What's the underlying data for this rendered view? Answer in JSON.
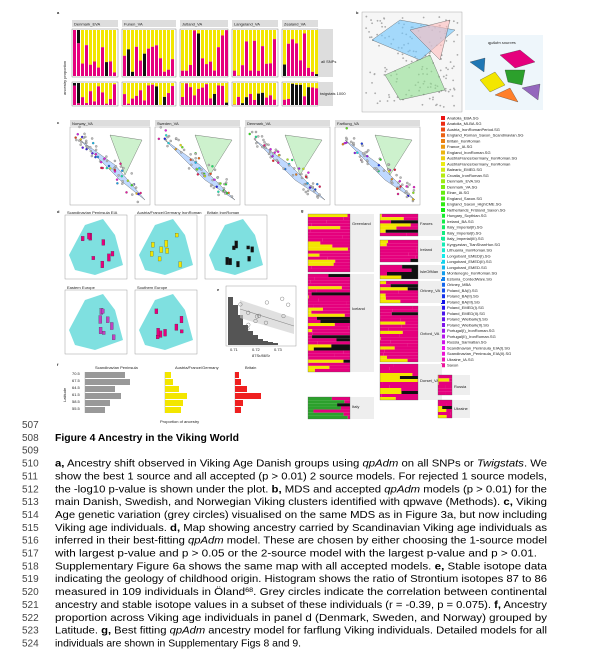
{
  "figure": {
    "panel_letters": [
      "a",
      "b",
      "c",
      "d",
      "e",
      "f",
      "g"
    ],
    "a": {
      "titles": [
        "Denmark_EVA",
        "Funen_VA",
        "Jutland_VA",
        "Langeland_VA",
        "Zealand_VA"
      ],
      "rows": [
        "all SNPs",
        "twigstats 1000"
      ],
      "ylabel": "ancestry proportion"
    },
    "b": {
      "legend_title": "qpAdm sources"
    },
    "c": {
      "titles": [
        "Norway_VA",
        "Sweden_VA",
        "Denmark_VA",
        "Farflung_VA"
      ],
      "legend": [
        "Anatolia_EBA.SG",
        "Anatolia_MLBA.SG",
        "Austria_IronRomanPeriod.SG",
        "England_Roman_Saxon_Scandinavian.SG",
        "Britain_IronRoman",
        "France_IA.SG",
        "England_IronRoman.SG",
        "AustriaFranceGermany_IronRoman.SG",
        "AustriaFranceGermany_IronRoman",
        "Balearic_EMED.SG",
        "Croatia_IronRoman.SG",
        "Denmark_EVA.SG",
        "Denmark_VA.SG",
        "Eiran_IA.SG",
        "England_Saxon.SG",
        "England_Saxon_HighCME.SG",
        "Netherlands_Frisland_Saxon.SG",
        "Hungary_Scythian.SG",
        "Ireland_BA.SG",
        "Italy_Imperial(II).SG",
        "Italy_Imperial(I).SG",
        "Italy_Imperial(III).SG",
        "Kyrgyzstan_TianShanHun.SG",
        "Lithuania_IronRoman.SG",
        "Longobard_EMED(I).SG",
        "Longobard_EMED(II).SG",
        "Longobard_EMED.SG",
        "Montenegro_IronRoman.SG",
        "Estonia_CordedWare.SG",
        "Orkney_MBA",
        "Poland_BA(I).SG",
        "Poland_BA(II).SG",
        "Poland_BA(III).SG",
        "Poland_EMED(I).SG",
        "Poland_EMED(II).SG",
        "Poland_Wielbark(I).SG",
        "Poland_Wielbark(II).SG",
        "Portugal(I)_IronRoman.SG",
        "Portugal(II)_IronRoman.SG",
        "Russia_Sarmatian.SG",
        "Scandinavian_Peninsula_EIA(I).SG",
        "Scandinavian_Peninsula_EIA(II).SG",
        "Ukraine_IA.SG",
        "Saxon"
      ]
    },
    "d": {
      "titles": [
        "Scandinavian Peninsula EIA",
        "Austria/France/Germany IronRoman",
        "Britain IronRoman",
        "Eastern Europe",
        "Southern Europe"
      ]
    },
    "e": {
      "xlabel": "87Sr/86Sr",
      "xticks": [
        "0.71",
        "0.72",
        "0.73"
      ]
    },
    "f": {
      "titles": [
        "Scandinavian Peninsula",
        "Austria/France/Germany",
        "Britain"
      ],
      "yticks": [
        70.5,
        67.5,
        64.5,
        61.5,
        58.5,
        55.5
      ],
      "ylabel": "Latitude",
      "xlabel": "Proportion of ancestry"
    },
    "g": {
      "labels": [
        "Greenland",
        "Iceland",
        "Italy",
        "Faroes",
        "Ireland",
        "IsleOfMan",
        "Orkney_VA",
        "Oxford_VA",
        "Dorset_VA",
        "Russia",
        "Ukraine"
      ]
    }
  },
  "caption": {
    "line_numbers": [
      507,
      508,
      509,
      510,
      511,
      512,
      513,
      514,
      515,
      516,
      517,
      518,
      519,
      520,
      521,
      522,
      523,
      524
    ],
    "title": "Figure 4 Ancestry in the Viking World",
    "lines": [
      {
        "runs": [
          {
            "text": "a,",
            "style": "bold"
          },
          {
            "text": " Ancestry shift observed in Viking Age Danish groups using "
          },
          {
            "text": "qpAdm",
            "style": "italic"
          },
          {
            "text": " on all SNPs or "
          },
          {
            "text": "Twigstats",
            "style": "italic"
          },
          {
            "text": ". We"
          }
        ]
      },
      {
        "runs": [
          {
            "text": "show the best 1 source and all accepted (p > 0.01) 2 source models. For rejected 1 source models,"
          }
        ]
      },
      {
        "runs": [
          {
            "text": "the -log10 p-value is shown under the plot. "
          },
          {
            "text": "b,",
            "style": "bold"
          },
          {
            "text": " MDS and accepted "
          },
          {
            "text": "qpAdm",
            "style": "italic"
          },
          {
            "text": " models (p > 0.01) for the"
          }
        ]
      },
      {
        "runs": [
          {
            "text": "main Danish, Swedish, and Norwegian Viking clusters identified with qpwave (Methods). "
          },
          {
            "text": "c,",
            "style": "bold"
          },
          {
            "text": " Viking"
          }
        ]
      },
      {
        "runs": [
          {
            "text": "Age genetic variation (grey circles) visualised on the same MDS as in Figure 3a, but now including"
          }
        ]
      },
      {
        "runs": [
          {
            "text": "Viking age individuals. "
          },
          {
            "text": "d,",
            "style": "bold"
          },
          {
            "text": " Map showing ancestry carried by Scandinavian Viking age individuals as"
          }
        ]
      },
      {
        "runs": [
          {
            "text": "inferred in their best-fitting "
          },
          {
            "text": "qpAdm",
            "style": "italic"
          },
          {
            "text": " model. These are chosen by either choosing the 1-source model"
          }
        ]
      },
      {
        "runs": [
          {
            "text": "with largest p-value and p > 0.05 or the 2-source model with the largest p-value and p > 0.01."
          }
        ]
      },
      {
        "runs": [
          {
            "text": "Supplementary Figure 6a shows the same map with all accepted models. "
          },
          {
            "text": "e,",
            "style": "bold"
          },
          {
            "text": " Stable isotope data"
          }
        ]
      },
      {
        "runs": [
          {
            "text": "indicating the geology of childhood origin. Histogram shows the ratio of Strontium isotopes 87 to 86"
          }
        ]
      },
      {
        "runs": [
          {
            "text": "measured in 109 individuals in Öland"
          },
          {
            "text": "68",
            "style": "sup"
          },
          {
            "text": ". Grey circles indicate the correlation between continental"
          }
        ]
      },
      {
        "runs": [
          {
            "text": "ancestry and stable isotope values in a subset of these individuals (r = -0.39, p = 0.075). "
          },
          {
            "text": "f,",
            "style": "bold"
          },
          {
            "text": " Ancestry"
          }
        ]
      },
      {
        "runs": [
          {
            "text": "proportion across Viking age individuals in panel d (Denmark, Sweden, and Norway) grouped by"
          }
        ]
      },
      {
        "runs": [
          {
            "text": "Latitude. "
          },
          {
            "text": "g,",
            "style": "bold"
          },
          {
            "text": " Best fitting "
          },
          {
            "text": "qpAdm",
            "style": "italic"
          },
          {
            "text": " ancestry model for farflung Viking individuals. Detailed models for all"
          }
        ]
      },
      {
        "runs": [
          {
            "text": "individuals are shown in Supplementary Figs 8 and 9."
          }
        ]
      }
    ]
  }
}
